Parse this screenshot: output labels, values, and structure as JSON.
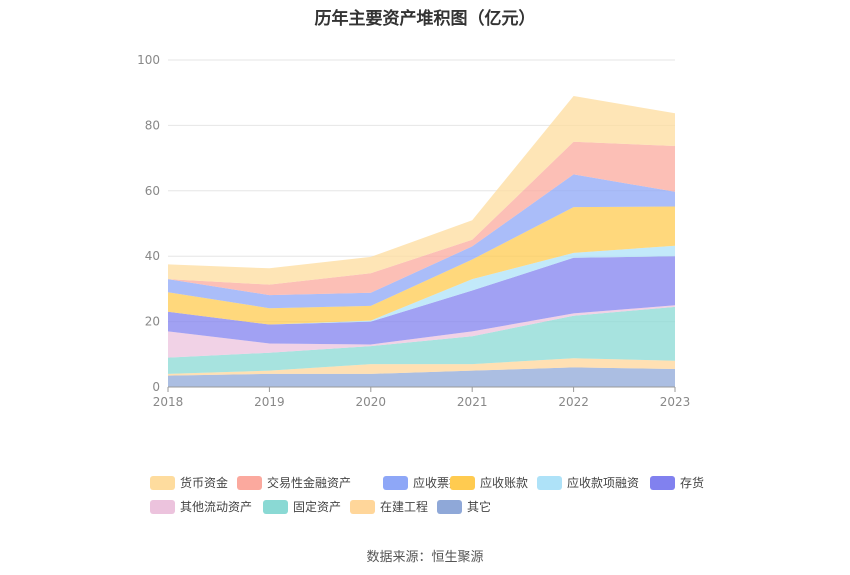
{
  "title": "历年主要资产堆积图（亿元）",
  "source": "数据来源：恒生聚源",
  "chart_data": {
    "type": "area",
    "stacked": true,
    "title": "历年主要资产堆积图（亿元）",
    "x": [
      "2018",
      "2019",
      "2020",
      "2021",
      "2022",
      "2023"
    ],
    "ylim": [
      0,
      100
    ],
    "yticks": [
      0,
      20,
      40,
      60,
      80,
      100
    ],
    "grid": true,
    "legend_position": "bottom",
    "series": [
      {
        "name": "其它",
        "color": "#8fa8d8",
        "values": [
          3.5,
          4.0,
          4.0,
          5.0,
          6.0,
          5.5
        ]
      },
      {
        "name": "在建工程",
        "color": "#ffd69a",
        "values": [
          0.5,
          1.0,
          3.0,
          2.0,
          2.8,
          2.5
        ]
      },
      {
        "name": "固定资产",
        "color": "#8ad9d4",
        "values": [
          5.0,
          5.5,
          5.5,
          8.5,
          13.0,
          16.5
        ]
      },
      {
        "name": "其他流动资产",
        "color": "#ecc3dd",
        "values": [
          8.0,
          2.8,
          0.5,
          1.5,
          0.7,
          0.5
        ]
      },
      {
        "name": "存货",
        "color": "#8181ef",
        "values": [
          6.0,
          5.8,
          7.0,
          12.5,
          17.0,
          15.0
        ]
      },
      {
        "name": "应收款项融资",
        "color": "#aee2f8",
        "values": [
          0,
          0,
          0.3,
          3.5,
          1.5,
          3.2
        ]
      },
      {
        "name": "应收账款",
        "color": "#ffcb50",
        "values": [
          6.0,
          5.0,
          4.5,
          6.0,
          14.0,
          12.0
        ]
      },
      {
        "name": "应收票据",
        "color": "#8ea7f7",
        "values": [
          4.0,
          4.0,
          4.0,
          4.0,
          10.0,
          4.5
        ]
      },
      {
        "name": "交易性金融资产",
        "color": "#fba99e",
        "values": [
          0,
          3.2,
          6.0,
          2.0,
          10.0,
          14.0
        ]
      },
      {
        "name": "货币资金",
        "color": "#fedc9e",
        "values": [
          4.5,
          5.0,
          5.0,
          6.0,
          14.0,
          10.0
        ]
      }
    ],
    "legend_order": [
      "货币资金",
      "交易性金融资产",
      "应收票据",
      "应收账款",
      "应收款项融资",
      "存货",
      "其他流动资产",
      "固定资产",
      "在建工程",
      "其它"
    ]
  }
}
